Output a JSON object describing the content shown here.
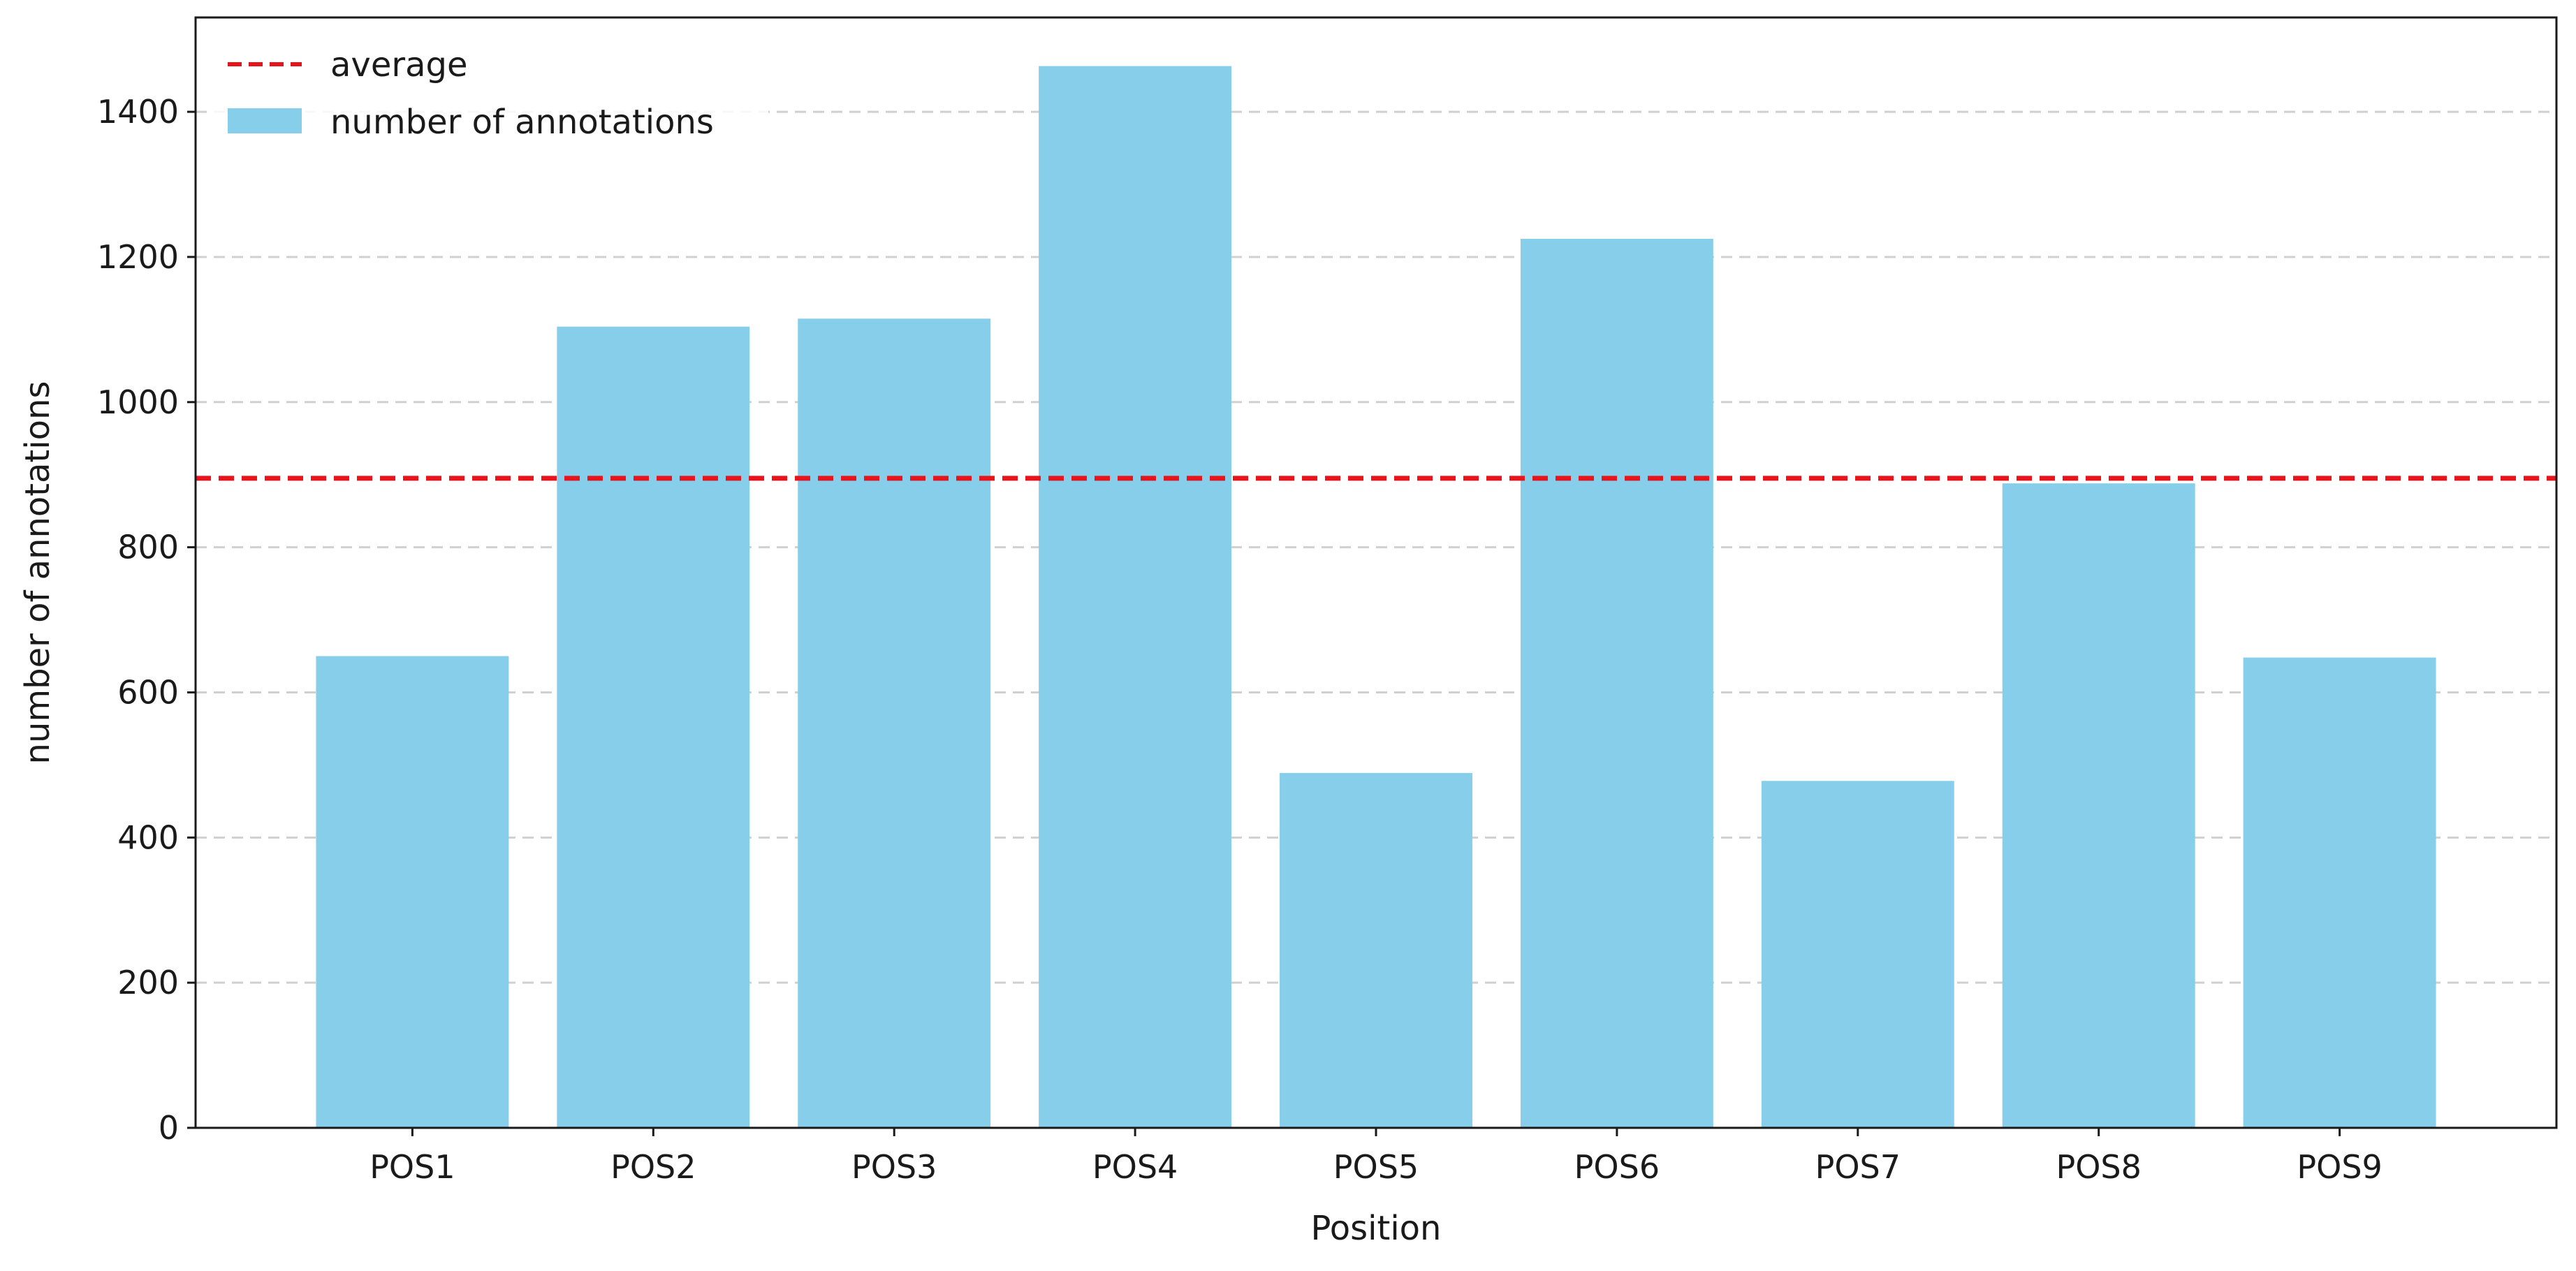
{
  "chart_data": {
    "type": "bar",
    "categories": [
      "POS1",
      "POS2",
      "POS3",
      "POS4",
      "POS5",
      "POS6",
      "POS7",
      "POS8",
      "POS9"
    ],
    "values": [
      650,
      1104,
      1115,
      1463,
      489,
      1225,
      478,
      888,
      648
    ],
    "average": 895,
    "xlabel": "Position",
    "ylabel": "number of annotations",
    "ylim": [
      0,
      1530
    ],
    "yticks": [
      0,
      200,
      400,
      600,
      800,
      1000,
      1200,
      1400
    ],
    "grid": "y-dashed",
    "legend": {
      "placement": "top-left",
      "entries": [
        {
          "label": "average",
          "kind": "dashed-line"
        },
        {
          "label": "number of annotations",
          "kind": "bar"
        }
      ]
    },
    "colors": {
      "bar": "#87ceeb",
      "average": "#e8141c",
      "grid": "#d0d0d0",
      "axis": "#1a1a1a"
    }
  }
}
